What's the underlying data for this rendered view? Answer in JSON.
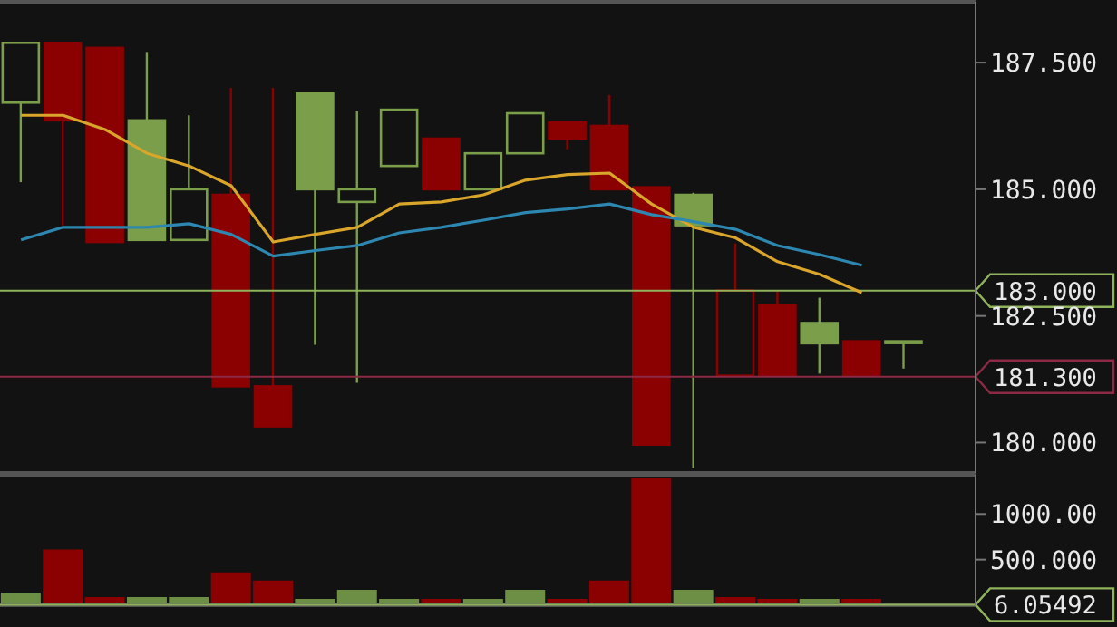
{
  "chart_data": [
    {
      "type": "candlestick",
      "categories": [
        null,
        null,
        null,
        null,
        null,
        null,
        null,
        null,
        null,
        null,
        null,
        null,
        null,
        null,
        null,
        null,
        null,
        null,
        null,
        null,
        null,
        null
      ],
      "ohlc": [
        [
          186.71,
          187.89,
          185.14,
          187.89
        ],
        [
          187.89,
          187.89,
          184.29,
          186.36
        ],
        [
          187.79,
          187.79,
          183.96,
          183.96
        ],
        [
          186.36,
          187.71,
          184.0,
          184.0
        ],
        [
          184.0,
          186.46,
          184.0,
          185.0
        ],
        [
          184.89,
          187.0,
          181.11,
          181.11
        ],
        [
          181.11,
          187.0,
          180.32,
          180.32
        ],
        [
          186.89,
          186.89,
          181.93,
          185.0
        ],
        [
          184.75,
          186.54,
          181.18,
          185.0
        ],
        [
          185.46,
          186.57,
          185.46,
          186.57
        ],
        [
          186.0,
          186.0,
          185.0,
          185.0
        ],
        [
          185.0,
          185.71,
          185.0,
          185.71
        ],
        [
          185.71,
          186.5,
          185.71,
          186.5
        ],
        [
          186.32,
          186.32,
          185.79,
          186.0
        ],
        [
          186.25,
          186.86,
          185.0,
          185.0
        ],
        [
          185.04,
          185.04,
          179.96,
          179.96
        ],
        [
          184.89,
          184.93,
          179.5,
          184.29
        ],
        [
          181.32,
          183.93,
          181.32,
          183.0
        ],
        [
          182.71,
          183.0,
          181.32,
          181.32
        ],
        [
          182.36,
          182.86,
          181.36,
          181.96
        ],
        [
          182.0,
          182.0,
          181.32,
          181.32
        ],
        [
          182.0,
          182.0,
          181.46,
          182.0
        ]
      ],
      "colors": [
        "#7a9e4a",
        "#8b0000",
        "#8b0000",
        "#7a9e4a",
        "#7a9e4a",
        "#8b0000",
        "#8b0000",
        "#7a9e4a",
        "#7a9e4a",
        "#7a9e4a",
        "#8b0000",
        "#7a9e4a",
        "#7a9e4a",
        "#8b0000",
        "#8b0000",
        "#8b0000",
        "#7a9e4a",
        "#8b0000",
        "#8b0000",
        "#7a9e4a",
        "#8b0000",
        "#7a9e4a"
      ],
      "series": [
        {
          "type": "line",
          "color": "#d9a52b",
          "values": [
            186.46,
            186.46,
            186.18,
            185.71,
            185.46,
            185.07,
            183.96,
            184.11,
            184.25,
            184.71,
            184.75,
            184.89,
            185.18,
            185.29,
            185.32,
            184.71,
            184.25,
            184.04,
            183.57,
            183.32,
            182.96,
            null
          ]
        },
        {
          "type": "line",
          "color": "#2d87b0",
          "values": [
            184.0,
            184.25,
            184.25,
            184.25,
            184.32,
            184.11,
            183.68,
            183.79,
            183.89,
            184.14,
            184.25,
            184.39,
            184.54,
            184.61,
            184.71,
            184.5,
            184.36,
            184.21,
            183.89,
            183.71,
            183.5,
            null
          ]
        }
      ],
      "ylim": [
        179.4,
        188.7
      ],
      "yticks": [
        {
          "value": 180,
          "label": "180.000"
        },
        {
          "value": 182.5,
          "label": "182.500"
        },
        {
          "value": 185,
          "label": "185.000"
        },
        {
          "value": 187.5,
          "label": "187.500"
        }
      ],
      "ref_lines": [
        {
          "axis": "y",
          "value": 183,
          "label": "183.000",
          "color": "#8fb35a"
        },
        {
          "axis": "y",
          "value": 181.3,
          "label": "181.300",
          "color": "#8c2a45"
        }
      ],
      "tick_labels": "y"
    },
    {
      "type": "bar",
      "categories": [
        null,
        null,
        null,
        null,
        null,
        null,
        null,
        null,
        null,
        null,
        null,
        null,
        null,
        null,
        null,
        null,
        null,
        null,
        null,
        null,
        null,
        null
      ],
      "values": [
        130,
        600,
        80,
        80,
        80,
        350,
        260,
        60,
        160,
        60,
        60,
        60,
        160,
        60,
        260,
        1380,
        160,
        80,
        60,
        60,
        60,
        null
      ],
      "colors": [
        "#6d8f45",
        "#8b0000",
        "#8b0000",
        "#6d8f45",
        "#6d8f45",
        "#8b0000",
        "#8b0000",
        "#6d8f45",
        "#6d8f45",
        "#6d8f45",
        "#8b0000",
        "#6d8f45",
        "#6d8f45",
        "#8b0000",
        "#8b0000",
        "#8b0000",
        "#6d8f45",
        "#8b0000",
        "#8b0000",
        "#6d8f45",
        "#8b0000",
        "#6d8f45"
      ],
      "ylim": [
        0,
        1430
      ],
      "yticks": [
        {
          "value": 500,
          "label": "500.000"
        },
        {
          "value": 1000,
          "label": "1000.00"
        }
      ],
      "ref_lines": [
        {
          "axis": "y",
          "value": 6.05492,
          "label": "6.05492",
          "color": "#8fb35a"
        }
      ],
      "tick_labels": "y"
    }
  ]
}
